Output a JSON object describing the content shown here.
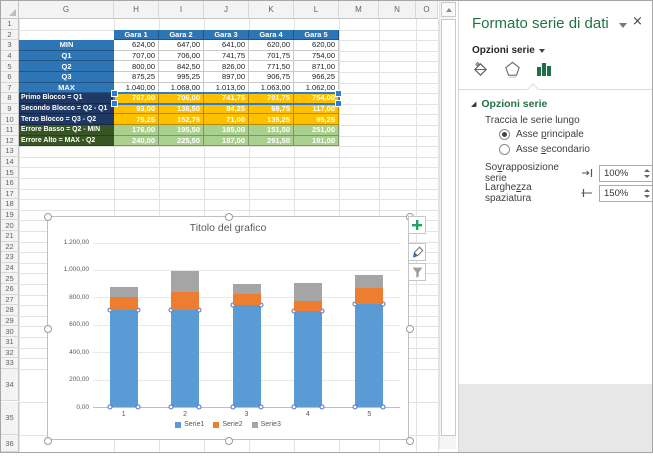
{
  "sheet": {
    "columns": [
      "G",
      "H",
      "I",
      "J",
      "K",
      "L",
      "M",
      "N",
      "O"
    ],
    "row_numbers": [
      "1",
      "2",
      "3",
      "4",
      "5",
      "6",
      "7",
      "8",
      "9",
      "10",
      "11",
      "12",
      "13",
      "14",
      "15",
      "16",
      "17",
      "18",
      "19",
      "20",
      "21",
      "22",
      "23",
      "24",
      "25",
      "26",
      "27",
      "28",
      "29",
      "30",
      "31",
      "32",
      "33",
      "34",
      "35",
      "36"
    ]
  },
  "table": {
    "col_headers": [
      "Gara 1",
      "Gara 2",
      "Gara 3",
      "Gara 4",
      "Gara 5"
    ],
    "rows": [
      {
        "label": "MIN",
        "group": "stat",
        "values": [
          "624,00",
          "647,00",
          "641,00",
          "620,00",
          "620,00"
        ]
      },
      {
        "label": "Q1",
        "group": "stat",
        "values": [
          "707,00",
          "706,00",
          "741,75",
          "701,75",
          "754,00"
        ]
      },
      {
        "label": "Q2",
        "group": "stat",
        "values": [
          "800,00",
          "842,50",
          "826,00",
          "771,50",
          "871,00"
        ]
      },
      {
        "label": "Q3",
        "group": "stat",
        "values": [
          "875,25",
          "995,25",
          "897,00",
          "906,75",
          "966,25"
        ]
      },
      {
        "label": "MAX",
        "group": "stat",
        "values": [
          "1.040,00",
          "1.068,00",
          "1.013,00",
          "1.063,00",
          "1.062,00"
        ]
      },
      {
        "label": "Primo Blocco = Q1",
        "group": "block",
        "selected": true,
        "values": [
          "707,00",
          "706,00",
          "741,75",
          "701,75",
          "754,00"
        ]
      },
      {
        "label": "Secondo Blocco = Q2 - Q1",
        "group": "block",
        "values": [
          "93,00",
          "136,50",
          "84,25",
          "69,75",
          "117,00"
        ]
      },
      {
        "label": "Terzo Blocco = Q3 - Q2",
        "group": "block",
        "values": [
          "75,25",
          "152,75",
          "71,00",
          "135,25",
          "95,25"
        ]
      },
      {
        "label": "Errore Basso = Q2 - MIN",
        "group": "error",
        "values": [
          "176,00",
          "195,50",
          "185,00",
          "151,50",
          "251,00"
        ]
      },
      {
        "label": "Errore Alto = MAX - Q2",
        "group": "error",
        "values": [
          "240,00",
          "225,50",
          "187,00",
          "291,50",
          "191,00"
        ]
      }
    ]
  },
  "chart_data": {
    "type": "bar",
    "stacked": true,
    "title": "Titolo del grafico",
    "categories": [
      "1",
      "2",
      "3",
      "4",
      "5"
    ],
    "series": [
      {
        "name": "Serie1",
        "color": "#5B9BD5",
        "selected": true,
        "values": [
          707,
          706,
          741.75,
          701.75,
          754
        ]
      },
      {
        "name": "Serie2",
        "color": "#ED7D31",
        "values": [
          93,
          136.5,
          84.25,
          69.75,
          117
        ]
      },
      {
        "name": "Serie3",
        "color": "#A5A5A5",
        "values": [
          75.25,
          152.75,
          71,
          135.25,
          95.25
        ]
      }
    ],
    "ylim": [
      0,
      1200
    ],
    "y_tick_step": 200,
    "y_ticks": [
      "0,00",
      "200,00",
      "400,00",
      "600,00",
      "800,00",
      "1.000,00",
      "1.200,00"
    ],
    "grid": true,
    "legend_position": "bottom"
  },
  "pane": {
    "title": "Formato serie di dati",
    "selector_label": "Opzioni serie",
    "section_title": "Opzioni serie",
    "plot_on_label": "Traccia le serie lungo",
    "radios": [
      {
        "pre": "Asse ",
        "accel": "p",
        "post": "rincipale",
        "selected": true
      },
      {
        "pre": "Asse ",
        "accel": "s",
        "post": "econdario",
        "selected": false
      }
    ],
    "fields": [
      {
        "pre": "So",
        "accel": "v",
        "post": "rapposizione serie",
        "value": "100%"
      },
      {
        "pre": "Larghe",
        "accel": "z",
        "post": "za spaziatura",
        "value": "150%"
      }
    ]
  },
  "icons": {
    "pane_close": "×",
    "section_expanded": "◢"
  },
  "colors": {
    "excel_green": "#217346",
    "header_blue": "#2E75B6",
    "navy": "#1F3864",
    "dark_green": "#385623",
    "gold": "#FFC000",
    "light_green": "#A9D08E",
    "selection_blue": "#2B7CD3",
    "cell_border": "#C9C9C9"
  }
}
